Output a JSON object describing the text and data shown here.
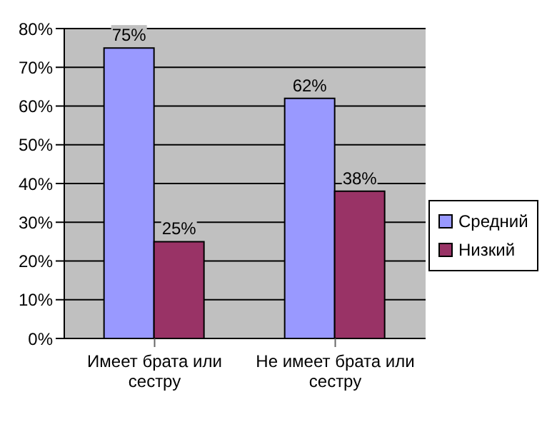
{
  "chart_data": {
    "type": "bar",
    "categories": [
      "Имеет брата или сестру",
      "Не имеет брата или сестру"
    ],
    "series": [
      {
        "name": "Средний",
        "color": "#9999ff",
        "values": [
          75,
          62
        ],
        "value_labels": [
          "75%",
          "62%"
        ]
      },
      {
        "name": "Низкий",
        "color": "#993366",
        "values": [
          25,
          38
        ],
        "value_labels": [
          "25%",
          "38%"
        ]
      }
    ],
    "ylim": [
      0,
      80
    ],
    "yticks": [
      {
        "value": 0,
        "label": "0%"
      },
      {
        "value": 10,
        "label": "10%"
      },
      {
        "value": 20,
        "label": "20%"
      },
      {
        "value": 30,
        "label": "30%"
      },
      {
        "value": 40,
        "label": "40%"
      },
      {
        "value": 50,
        "label": "50%"
      },
      {
        "value": 60,
        "label": "60%"
      },
      {
        "value": 70,
        "label": "70%"
      },
      {
        "value": 80,
        "label": "80%"
      }
    ],
    "grid": "y",
    "legend": "right"
  }
}
